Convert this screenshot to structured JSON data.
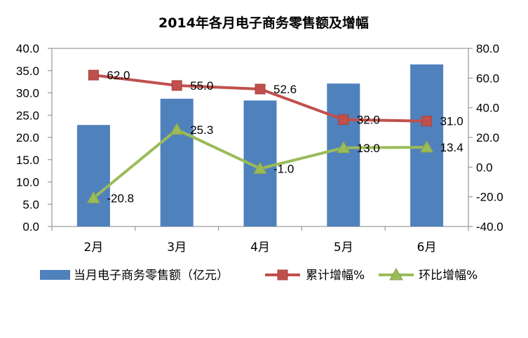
{
  "chart_data": {
    "type": "bar",
    "title": "2014年各月电子商务零售额及增幅",
    "categories": [
      "2月",
      "3月",
      "4月",
      "5月",
      "6月"
    ],
    "series": [
      {
        "name": "当月电子商务零售额（亿元）",
        "type": "bar",
        "axis": "left",
        "color": "#4F81BD",
        "values": [
          22.8,
          28.7,
          28.3,
          32.1,
          36.4
        ]
      },
      {
        "name": "累计增幅%",
        "type": "line",
        "axis": "right",
        "marker": "square",
        "color": "#C0504D",
        "values": [
          62.0,
          55.0,
          52.6,
          32.0,
          31.0
        ],
        "data_labels": [
          "62.0",
          "55.0",
          "52.6",
          "32.0",
          "31.0"
        ]
      },
      {
        "name": "环比增幅%",
        "type": "line",
        "axis": "right",
        "marker": "triangle",
        "color": "#9BBB59",
        "values": [
          -20.8,
          25.3,
          -1.0,
          13.0,
          13.4
        ],
        "data_labels": [
          "-20.8",
          "25.3",
          "-1.0",
          "13.0",
          "13.4"
        ]
      }
    ],
    "y_left": {
      "min": 0,
      "max": 40,
      "step": 5,
      "tick_labels": [
        "0.0",
        "5.0",
        "10.0",
        "15.0",
        "20.0",
        "25.0",
        "30.0",
        "35.0",
        "40.0"
      ]
    },
    "y_right": {
      "min": -40,
      "max": 80,
      "step": 20,
      "tick_labels": [
        "-40.0",
        "-20.0",
        "0.0",
        "20.0",
        "40.0",
        "60.0",
        "80.0"
      ]
    },
    "grid": false,
    "legend": "bottom"
  }
}
